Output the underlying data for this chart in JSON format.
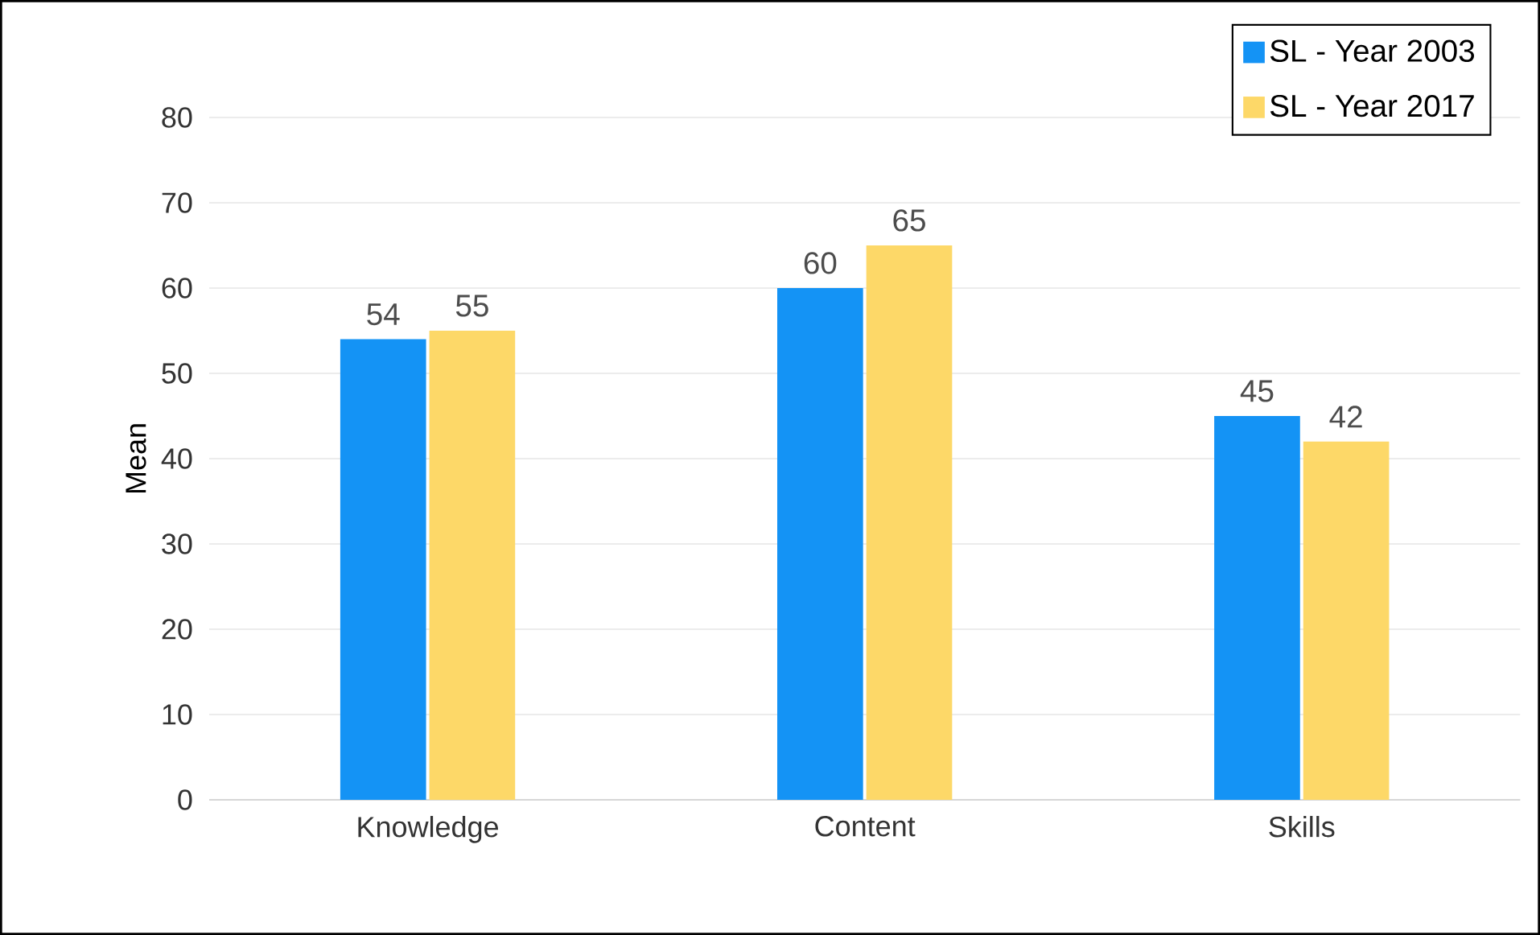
{
  "chart_data": {
    "type": "bar",
    "ylabel": "Mean",
    "categories": [
      "Knowledge",
      "Content",
      "Skills"
    ],
    "series": [
      {
        "name": "SL - Year 2003",
        "color": "#1493f5",
        "values": [
          54,
          60,
          45
        ]
      },
      {
        "name": "SL - Year 2017",
        "color": "#fdd868",
        "values": [
          55,
          65,
          42
        ]
      }
    ],
    "ylim": [
      0,
      80
    ],
    "yticks": [
      0,
      10,
      20,
      30,
      40,
      50,
      60,
      70,
      80
    ],
    "grid": "y",
    "legend": "top right",
    "data_labels": true
  }
}
